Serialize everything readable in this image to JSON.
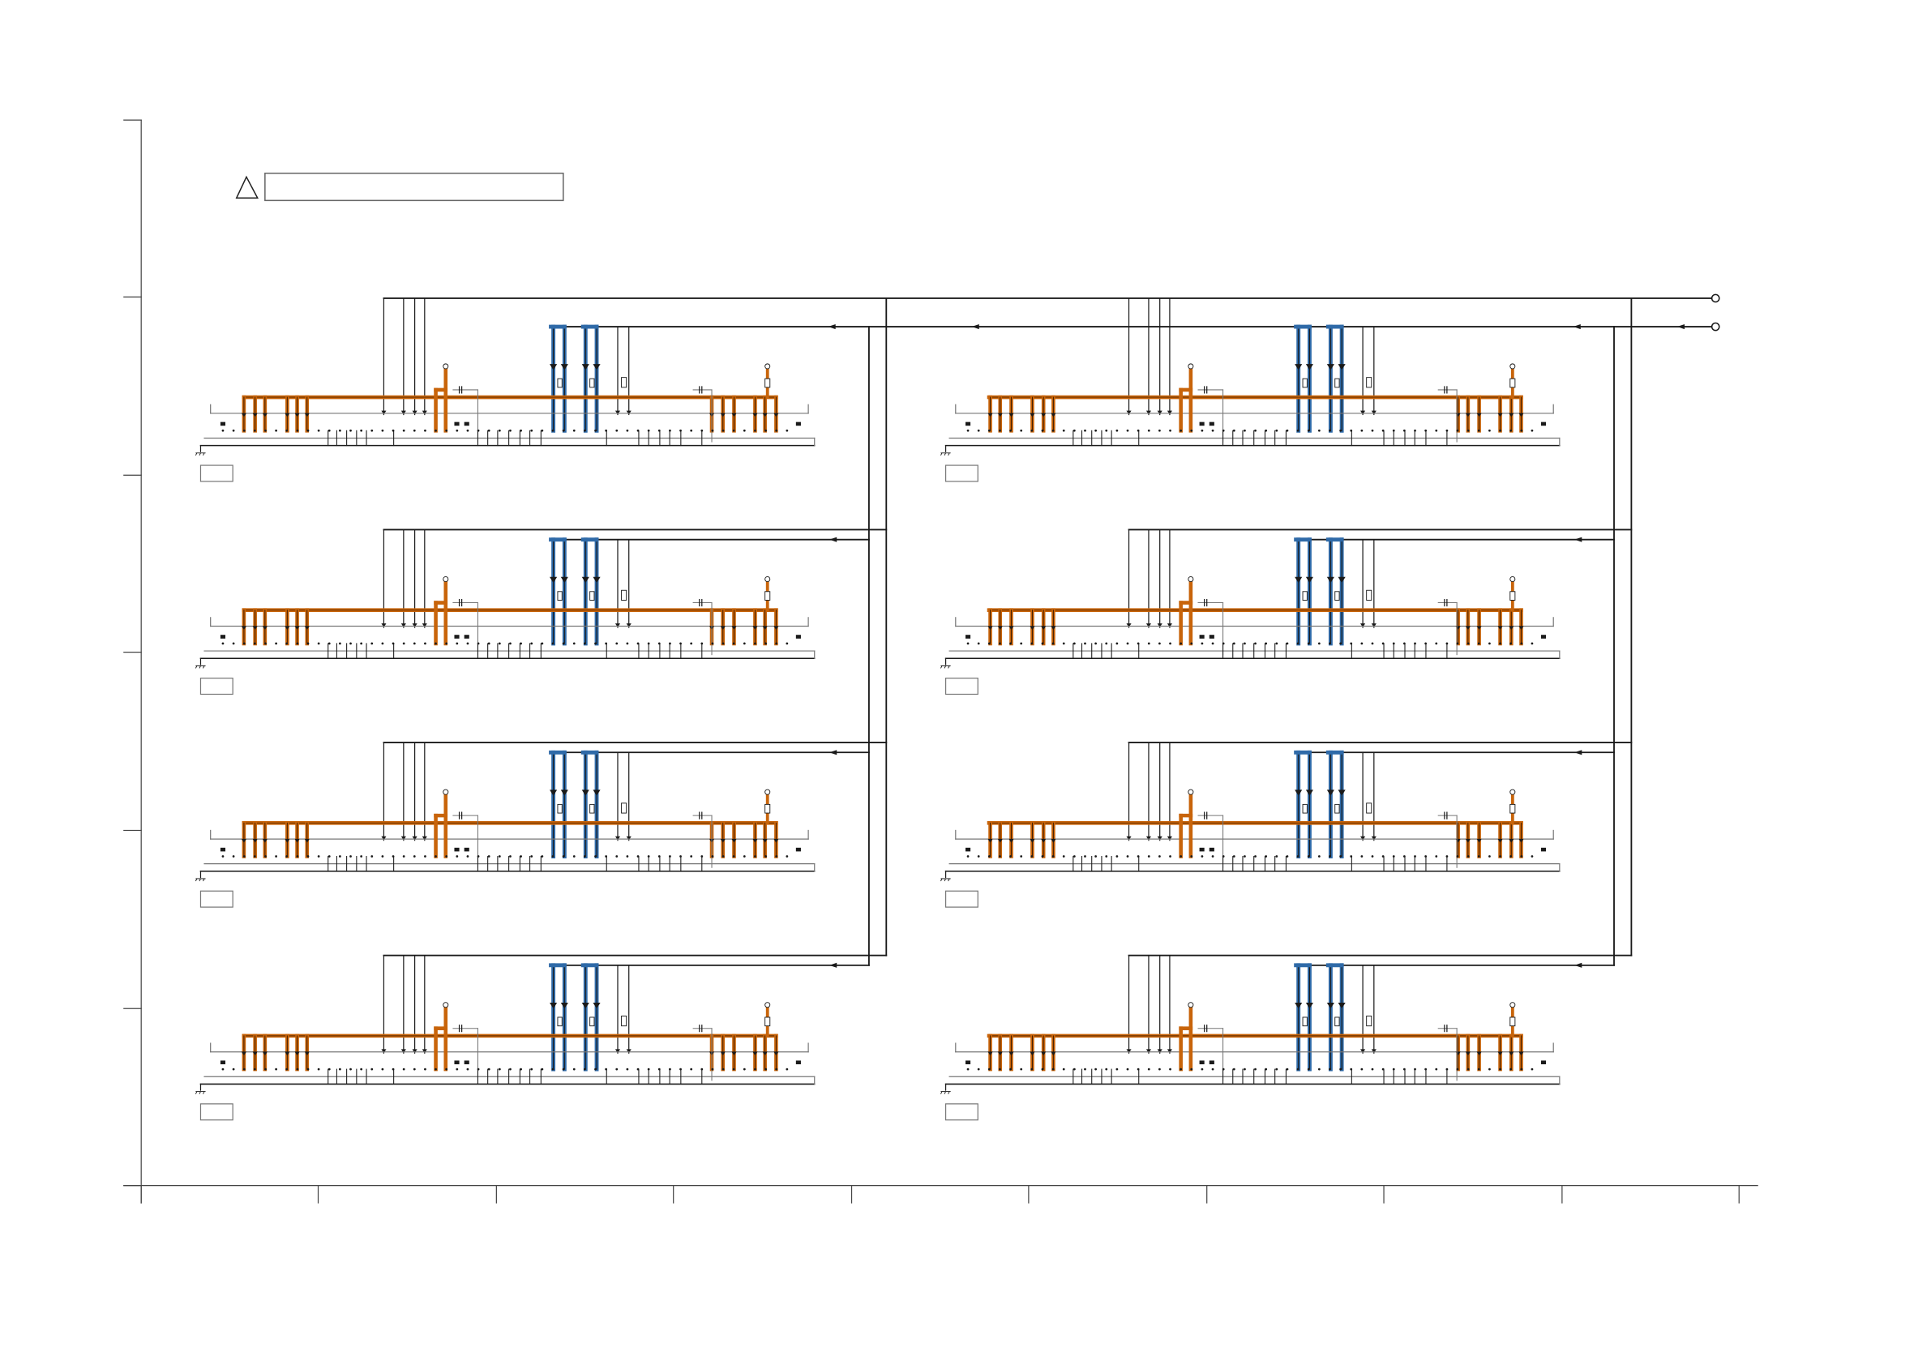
{
  "diagram": {
    "type": "wiring-schematic",
    "warning_icon": "triangle-warning-icon",
    "warning_note": "",
    "module_grid": {
      "rows": 4,
      "columns": 2
    },
    "module_label": "",
    "terminals": [
      "terminal-a",
      "terminal-b"
    ],
    "colors": {
      "line": "#1a1a1a",
      "frame": "#444444",
      "power_trace": "#c8640a",
      "signal_trace": "#2f6aa8",
      "box": "#777777"
    }
  }
}
